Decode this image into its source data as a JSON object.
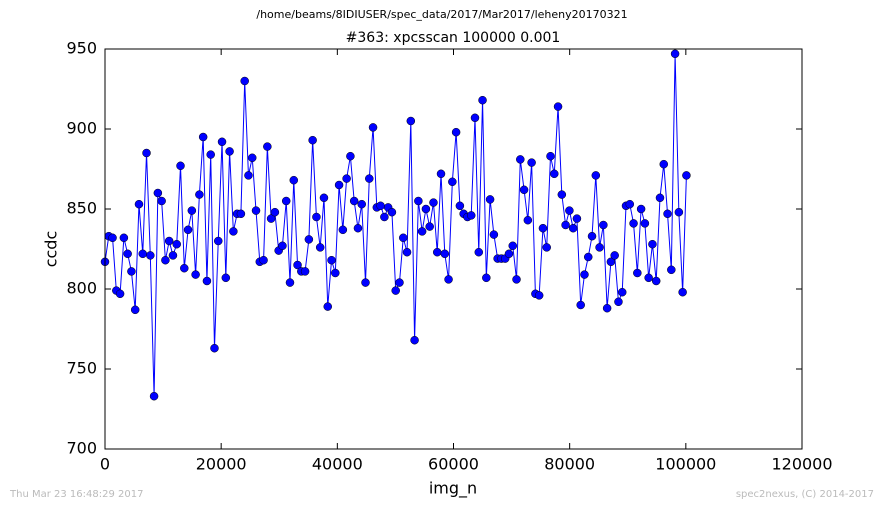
{
  "chart_data": {
    "type": "line",
    "suptitle": "/home/beams/8IDIUSER/spec_data/2017/Mar2017/leheny20170321",
    "title": "#363: xpcsscan 100000 0.001",
    "x_label": "img_n",
    "y_label": "ccdc",
    "footer_left": "Thu Mar 23 16:48:29 2017",
    "footer_right": "spec2nexus, (C) 2014-2017",
    "xlim": [
      0,
      120000
    ],
    "xticks": [
      0,
      20000,
      40000,
      60000,
      80000,
      100000,
      120000
    ],
    "ylim": [
      700,
      950
    ],
    "yticks": [
      700,
      750,
      800,
      850,
      900,
      950
    ],
    "grid": false,
    "x": [
      0,
      650,
      1300,
      1950,
      2600,
      3250,
      3900,
      4550,
      5200,
      5850,
      6500,
      7150,
      7800,
      8450,
      9100,
      9750,
      10400,
      11050,
      11700,
      12350,
      13000,
      13650,
      14300,
      14950,
      15600,
      16250,
      16900,
      17550,
      18200,
      18850,
      19500,
      20150,
      20800,
      21450,
      22100,
      22750,
      23400,
      24050,
      24700,
      25350,
      26000,
      26650,
      27300,
      27950,
      28600,
      29250,
      29900,
      30550,
      31200,
      31850,
      32500,
      33150,
      33800,
      34450,
      35100,
      35750,
      36400,
      37050,
      37700,
      38350,
      39000,
      39650,
      40300,
      40950,
      41600,
      42250,
      42900,
      43550,
      44200,
      44850,
      45500,
      46150,
      46800,
      47450,
      48100,
      48750,
      49400,
      50050,
      50700,
      51350,
      52000,
      52650,
      53300,
      53950,
      54600,
      55250,
      55900,
      56550,
      57200,
      57850,
      58500,
      59150,
      59800,
      60450,
      61100,
      61750,
      62400,
      63050,
      63700,
      64350,
      65000,
      65650,
      66300,
      66950,
      67600,
      68250,
      68900,
      69550,
      70200,
      70850,
      71500,
      72150,
      72800,
      73450,
      74100,
      74750,
      75400,
      76050,
      76700,
      77350,
      78000,
      78650,
      79300,
      79950,
      80600,
      81250,
      81900,
      82550,
      83200,
      83850,
      84500,
      85150,
      85800,
      86450,
      87100,
      87750,
      88400,
      89050,
      89700,
      90350,
      91000,
      91650,
      92300,
      92950,
      93600,
      94250,
      94900,
      95550,
      96200,
      96850,
      97500,
      98150,
      98800,
      99450,
      100100
    ],
    "series": [
      {
        "color": "#0000ff",
        "values": [
          817,
          833,
          832,
          799,
          797,
          832,
          822,
          811,
          787,
          853,
          822,
          885,
          821,
          733,
          860,
          855,
          818,
          830,
          821,
          828,
          877,
          813,
          837,
          849,
          809,
          859,
          895,
          805,
          884,
          763,
          830,
          892,
          807,
          886,
          836,
          847,
          847,
          930,
          871,
          882,
          849,
          817,
          818,
          889,
          844,
          848,
          824,
          827,
          855,
          804,
          868,
          815,
          811,
          811,
          831,
          893,
          845,
          826,
          857,
          789,
          818,
          810,
          865,
          837,
          869,
          883,
          855,
          838,
          853,
          804,
          869,
          901,
          851,
          852,
          845,
          851,
          848,
          799,
          804,
          832,
          823,
          905,
          768,
          855,
          836,
          850,
          839,
          854,
          823,
          872,
          822,
          806,
          867,
          898,
          852,
          847,
          845,
          846,
          907,
          823,
          918,
          807,
          856,
          834,
          819,
          819,
          819,
          822,
          827,
          806,
          881,
          862,
          843,
          879,
          797,
          796,
          838,
          826,
          883,
          872,
          914,
          859,
          840,
          849,
          838,
          844,
          790,
          809,
          820,
          833,
          871,
          826,
          840,
          788,
          817,
          821,
          792,
          798,
          852,
          853,
          841,
          810,
          850,
          841,
          807,
          828,
          805,
          857,
          878,
          847,
          812,
          947,
          848,
          798,
          871
        ]
      }
    ]
  }
}
